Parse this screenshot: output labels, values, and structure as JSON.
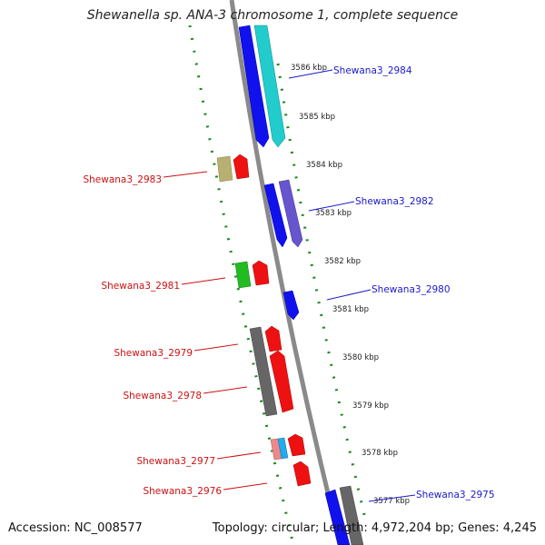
{
  "title": "Shewanella sp. ANA-3 chromosome 1, complete sequence",
  "footer": {
    "accession": "Accession: NC_008577",
    "summary": "Topology: circular; Length: 4,972,204 bp; Genes: 4,245"
  },
  "colors": {
    "blue_label": "#1a1acc",
    "red_label": "#cc1111",
    "dotted_track": "#1a8a1a",
    "backbone": "#8a8a8a"
  },
  "ticks": [
    {
      "label": "3586 kbp"
    },
    {
      "label": "3585 kbp"
    },
    {
      "label": "3584 kbp"
    },
    {
      "label": "3583 kbp"
    },
    {
      "label": "3582 kbp"
    },
    {
      "label": "3581 kbp"
    },
    {
      "label": "3580 kbp"
    },
    {
      "label": "3579 kbp"
    },
    {
      "label": "3578 kbp"
    },
    {
      "label": "3577 kbp"
    }
  ],
  "genes_right": [
    {
      "label": "Shewana3_2984"
    },
    {
      "label": "Shewana3_2982"
    },
    {
      "label": "Shewana3_2980"
    },
    {
      "label": "Shewana3_2975"
    }
  ],
  "genes_left": [
    {
      "label": "Shewana3_2983"
    },
    {
      "label": "Shewana3_2981"
    },
    {
      "label": "Shewana3_2979"
    },
    {
      "label": "Shewana3_2978"
    },
    {
      "label": "Shewana3_2977"
    },
    {
      "label": "Shewana3_2976"
    }
  ]
}
